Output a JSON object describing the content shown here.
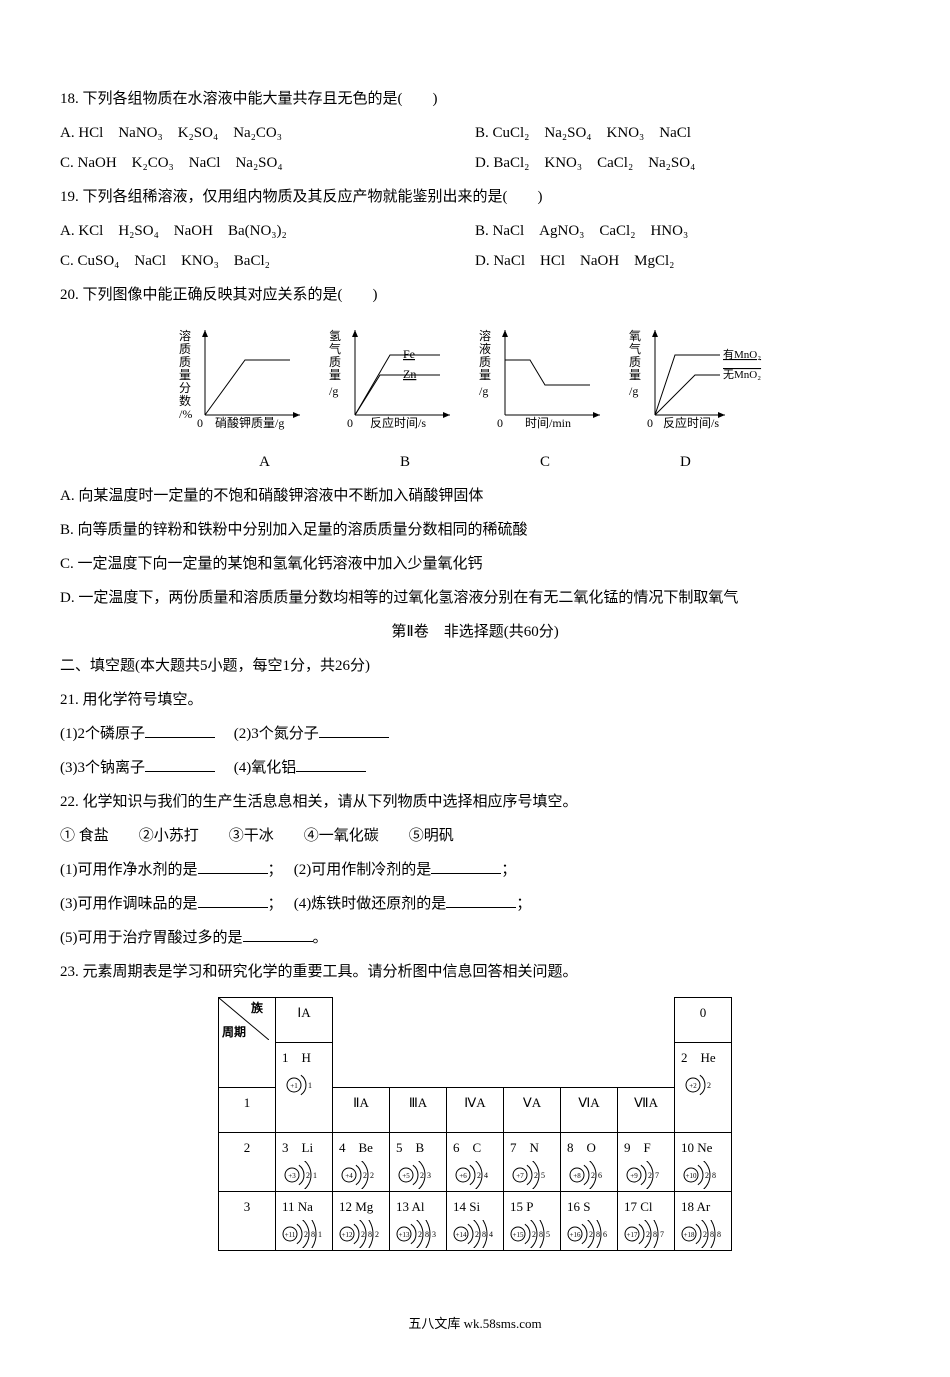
{
  "q18": {
    "stem": "18. 下列各组物质在水溶液中能大量共存且无色的是(　　)",
    "A": "A. HCl　NaNO₃　K₂SO₄　Na₂CO₃",
    "B": "B. CuCl₂　Na₂SO₄　KNO₃　NaCl",
    "C": "C. NaOH　K₂CO₃　NaCl　Na₂SO₄",
    "D": "D. BaCl₂　KNO₃　CaCl₂　Na₂SO₄"
  },
  "q19": {
    "stem": "19. 下列各组稀溶液，仅用组内物质及其反应产物就能鉴别出来的是(　　)",
    "A": "A. KCl　H₂SO₄　NaOH　Ba(NO₃)₂",
    "B": "B. NaCl　AgNO₃　CaCl₂　HNO₃",
    "C": "C. CuSO₄　NaCl　KNO₃　BaCl₂",
    "D": "D. NaCl　HCl　NaOH　MgCl₂"
  },
  "q20": {
    "stem": "20. 下列图像中能正确反映其对应关系的是(　　)",
    "chartA": {
      "ylabel": "溶质质量分数/%",
      "xlabel": "硝酸钾质量/g"
    },
    "chartB": {
      "ylabel": "氢气质量/g",
      "xlabel": "反应时间/s",
      "l1": "Fe",
      "l2": "Zn"
    },
    "chartC": {
      "ylabel": "溶液质量/g",
      "xlabel": "时间/min"
    },
    "chartD": {
      "ylabel": "氧气质量/g",
      "xlabel": "反应时间/s",
      "l1": "有MnO₂",
      "l2": "无MnO₂"
    },
    "labels": {
      "A": "A",
      "B": "B",
      "C": "C",
      "D": "D"
    },
    "optA": "A. 向某温度时一定量的不饱和硝酸钾溶液中不断加入硝酸钾固体",
    "optB": "B. 向等质量的锌粉和铁粉中分别加入足量的溶质质量分数相同的稀硫酸",
    "optC": "C. 一定温度下向一定量的某饱和氢氧化钙溶液中加入少量氧化钙",
    "optD": "D. 一定温度下，两份质量和溶质质量分数均相等的过氧化氢溶液分别在有无二氧化锰的情况下制取氧气"
  },
  "section2": "第Ⅱ卷　非选择题(共60分)",
  "fillHeading": "二、填空题(本大题共5小题，每空1分，共26分)",
  "q21": {
    "stem": "21. 用化学符号填空。",
    "l1a": "(1)2个磷原子",
    "l1b": "(2)3个氮分子",
    "l2a": "(3)3个钠离子",
    "l2b": "(4)氧化铝"
  },
  "q22": {
    "stem": "22. 化学知识与我们的生产生活息息相关，请从下列物质中选择相应序号填空。",
    "list": "① 食盐　　②小苏打　　③干冰　　④一氧化碳　　⑤明矾",
    "l1a": "(1)可用作净水剂的是",
    "l1b": "(2)可用作制冷剂的是",
    "l2a": "(3)可用作调味品的是",
    "l2b": "(4)炼铁时做还原剂的是",
    "l3": "(5)可用于治疗胃酸过多的是"
  },
  "q23": {
    "stem": "23. 元素周期表是学习和研究化学的重要工具。请分析图中信息回答相关问题。"
  },
  "ptable": {
    "diag": {
      "top": "族",
      "bottom": "周期"
    },
    "groups": [
      "ⅠA",
      "ⅡA",
      "ⅢA",
      "ⅣA",
      "ⅤA",
      "ⅥA",
      "ⅦA",
      "0"
    ],
    "periods": [
      "1",
      "2",
      "3"
    ],
    "row1": {
      "H": {
        "label": "1　H",
        "z": "+1",
        "shells": [
          1
        ]
      },
      "He": {
        "label": "2　He",
        "z": "+2",
        "shells": [
          2
        ]
      }
    },
    "row2": [
      {
        "label": "3　Li",
        "z": "+3",
        "shells": [
          2,
          1
        ]
      },
      {
        "label": "4　Be",
        "z": "+4",
        "shells": [
          2,
          2
        ]
      },
      {
        "label": "5　B",
        "z": "+5",
        "shells": [
          2,
          3
        ]
      },
      {
        "label": "6　C",
        "z": "+6",
        "shells": [
          2,
          4
        ]
      },
      {
        "label": "7　N",
        "z": "+7",
        "shells": [
          2,
          5
        ]
      },
      {
        "label": "8　O",
        "z": "+8",
        "shells": [
          2,
          6
        ]
      },
      {
        "label": "9　F",
        "z": "+9",
        "shells": [
          2,
          7
        ]
      },
      {
        "label": "10 Ne",
        "z": "+10",
        "shells": [
          2,
          8
        ]
      }
    ],
    "row3": [
      {
        "label": "11 Na",
        "z": "+11",
        "shells": [
          2,
          8,
          1
        ]
      },
      {
        "label": "12 Mg",
        "z": "+12",
        "shells": [
          2,
          8,
          2
        ]
      },
      {
        "label": "13 Al",
        "z": "+13",
        "shells": [
          2,
          8,
          3
        ]
      },
      {
        "label": "14 Si",
        "z": "+14",
        "shells": [
          2,
          8,
          4
        ]
      },
      {
        "label": "15 P",
        "z": "+15",
        "shells": [
          2,
          8,
          5
        ]
      },
      {
        "label": "16 S",
        "z": "+16",
        "shells": [
          2,
          8,
          6
        ]
      },
      {
        "label": "17 Cl",
        "z": "+17",
        "shells": [
          2,
          8,
          7
        ]
      },
      {
        "label": "18 Ar",
        "z": "+18",
        "shells": [
          2,
          8,
          8
        ]
      }
    ]
  },
  "footer": "五八文库 wk.58sms.com",
  "colors": {
    "line": "#000000",
    "bg": "#ffffff"
  }
}
